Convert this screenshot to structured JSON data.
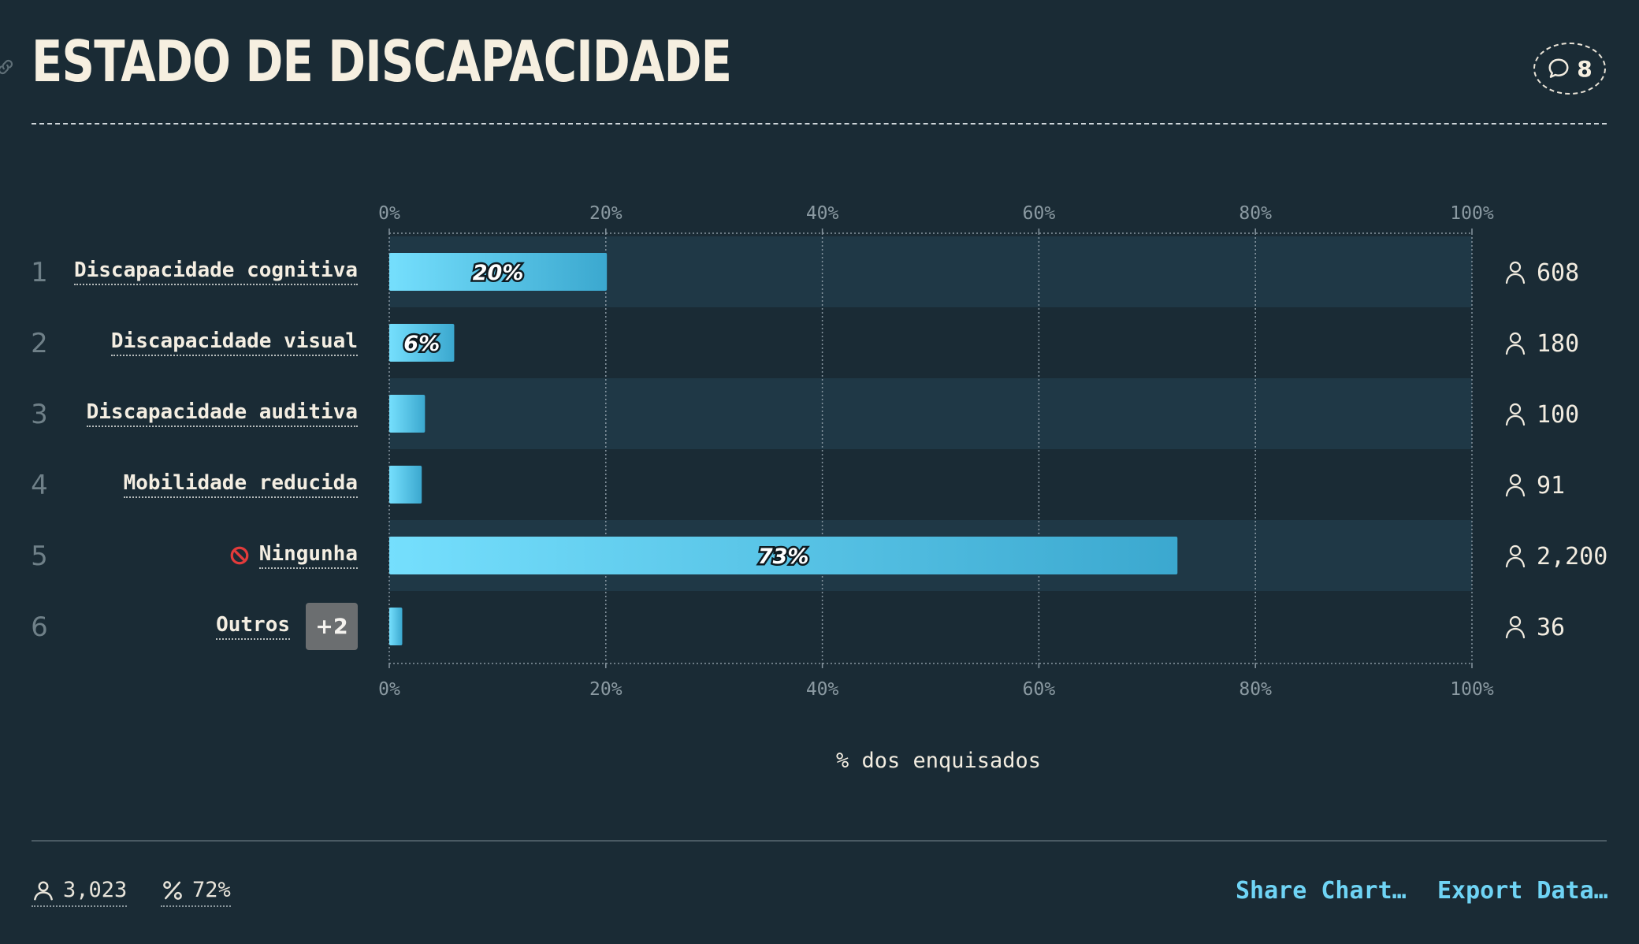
{
  "header": {
    "title": "ESTADO DE DISCAPACIDADE",
    "comment_count": "8"
  },
  "chart_data": {
    "type": "bar",
    "orientation": "horizontal",
    "title": "ESTADO DE DISCAPACIDADE",
    "xlabel": "% dos enquisados",
    "xlim": [
      0,
      100
    ],
    "xticks": [
      "0%",
      "20%",
      "40%",
      "60%",
      "80%",
      "100%"
    ],
    "grid": true,
    "categories": [
      "Discapacidade cognitiva",
      "Discapacidade visual",
      "Discapacidade auditiva",
      "Mobilidade reducida",
      "Ningunha",
      "Outros"
    ],
    "rank": [
      "1",
      "2",
      "3",
      "4",
      "5",
      "6"
    ],
    "values": [
      20.1,
      6.0,
      3.3,
      3.0,
      72.8,
      1.2
    ],
    "value_labels": [
      "20%",
      "6%",
      "",
      "",
      "73%",
      ""
    ],
    "counts": [
      "608",
      "180",
      "100",
      "91",
      "2,200",
      "36"
    ],
    "others_badge": "+2",
    "colors": {
      "bar_start": "#75dffd",
      "bar_end": "#3ba8cf",
      "band": "#1f3846",
      "background": "#1a2b35"
    }
  },
  "footer": {
    "respondents": "3,023",
    "percent": "72%",
    "share_label": "Share Chart…",
    "export_label": "Export Data…"
  }
}
